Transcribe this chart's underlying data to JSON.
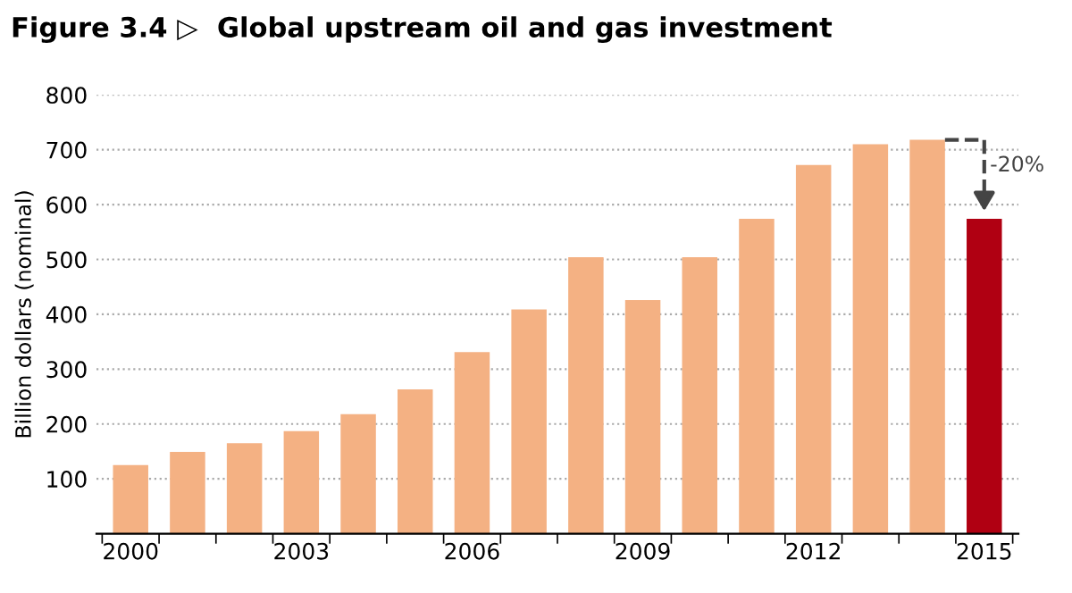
{
  "chart_data": {
    "type": "bar",
    "title": "Figure 3.4 ▷  Global upstream oil and gas investment",
    "ylabel": "Billion dollars (nominal)",
    "categories": [
      "2000",
      null,
      null,
      "2003",
      null,
      null,
      "2006",
      null,
      null,
      "2009",
      null,
      null,
      "2012",
      null,
      null,
      "2015"
    ],
    "values": [
      125,
      149,
      165,
      187,
      218,
      263,
      331,
      409,
      504,
      426,
      504,
      574,
      672,
      710,
      718,
      574
    ],
    "colors": [
      "#f4b183",
      "#f4b183",
      "#f4b183",
      "#f4b183",
      "#f4b183",
      "#f4b183",
      "#f4b183",
      "#f4b183",
      "#f4b183",
      "#f4b183",
      "#f4b183",
      "#f4b183",
      "#f4b183",
      "#f4b183",
      "#f4b183",
      "#b00012"
    ],
    "ylim": [
      0,
      800
    ],
    "yticks": [
      100,
      200,
      300,
      400,
      500,
      600,
      700,
      800
    ],
    "grid": "y",
    "annotations": [
      {
        "text": "-20%",
        "x": "2015",
        "y": 574
      }
    ]
  }
}
